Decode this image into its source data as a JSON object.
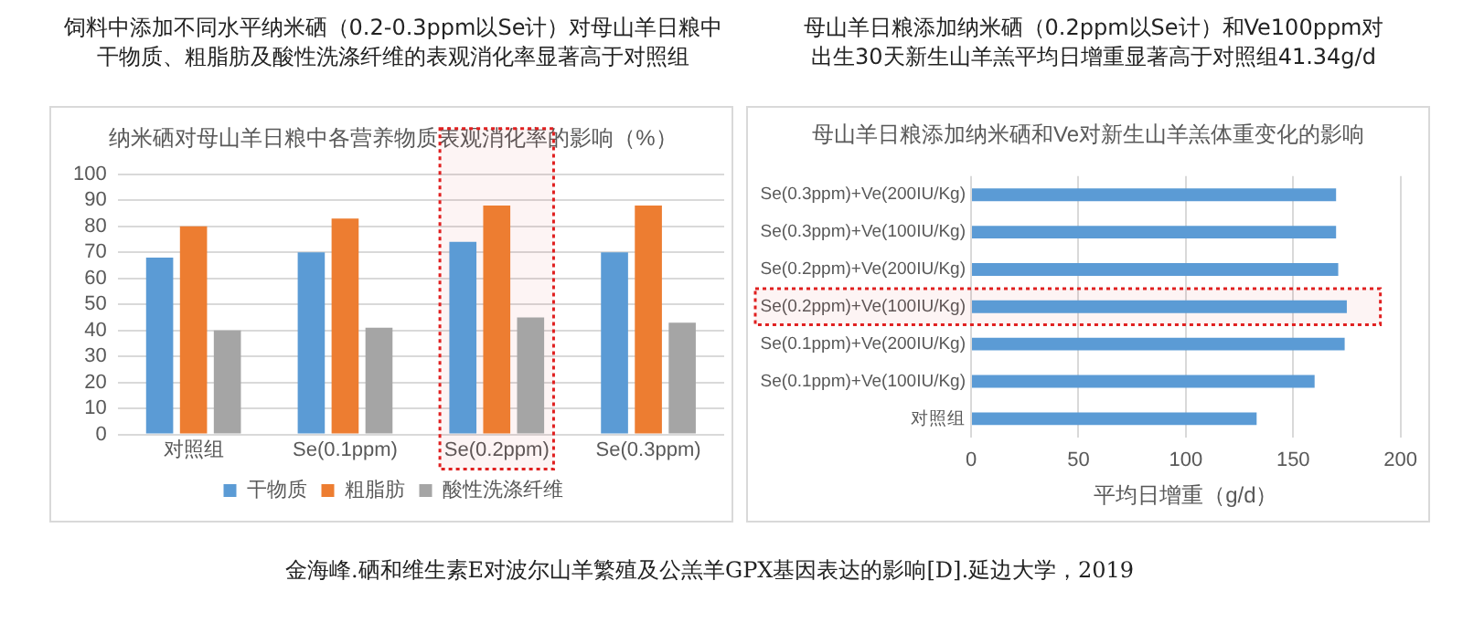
{
  "chart_data": [
    {
      "type": "bar",
      "title": "饲料中添加不同水平纳米硒（0.2-0.3ppm以Se计）对母山羊日粮中干物质、粗脂肪及酸性洗涤纤维的表观消化率显著高于对照组",
      "subtitle": "纳米硒对母山羊日粮中各营养物质表观消化率的影响（%）",
      "categories": [
        "对照组",
        "Se(0.1ppm)",
        "Se(0.2ppm)",
        "Se(0.3ppm)"
      ],
      "series": [
        {
          "name": "干物质",
          "color": "#5b9bd5",
          "values": [
            68,
            70,
            74,
            70
          ]
        },
        {
          "name": "粗脂肪",
          "color": "#ed7d31",
          "values": [
            80,
            83,
            88,
            88
          ]
        },
        {
          "name": "酸性洗涤纤维",
          "color": "#a5a5a5",
          "values": [
            40,
            41,
            45,
            43
          ]
        }
      ],
      "ylim": [
        0,
        100
      ],
      "yticks": [
        0,
        10,
        20,
        30,
        40,
        50,
        60,
        70,
        80,
        90,
        100
      ],
      "grid": "y",
      "legend": "bottom",
      "bands": [
        {
          "axis": "x",
          "from": "Se(0.2ppm)",
          "to": "Se(0.2ppm)",
          "color": "#e02020"
        }
      ],
      "annotations": [
        "金海峰.硒和维生素E对波尔山羊繁殖及公羔羊GPX基因表达的影响[D].延边大学，2019"
      ]
    },
    {
      "type": "bar",
      "orientation": "horizontal",
      "title": "母山羊日粮添加纳米硒（0.2ppm以Se计）和Ve100ppm对出生30天新生山羊羔平均日增重显著高于对照组41.34g/d",
      "subtitle": "母山羊日粮添加纳米硒和Ve对新生山羊羔体重变化的影响",
      "categories": [
        "Se(0.3ppm)+Ve(200IU/Kg)",
        "Se(0.3ppm)+Ve(100IU/Kg)",
        "Se(0.2ppm)+Ve(200IU/Kg)",
        "Se(0.2ppm)+Ve(100IU/Kg)",
        "Se(0.1ppm)+Ve(200IU/Kg)",
        "Se(0.1ppm)+Ve(100IU/Kg)",
        "对照组"
      ],
      "values": [
        170,
        170,
        171,
        175,
        174,
        160,
        133
      ],
      "color": "#5b9bd5",
      "xlim": [
        0,
        200
      ],
      "xticks": [
        0,
        50,
        100,
        150,
        200
      ],
      "xlabel": "平均日增重（g/d）",
      "grid": "x",
      "bands": [
        {
          "axis": "y",
          "from": "Se(0.2ppm)+Ve(100IU/Kg)",
          "to": "Se(0.2ppm)+Ve(100IU/Kg)",
          "color": "#e02020"
        }
      ]
    }
  ]
}
